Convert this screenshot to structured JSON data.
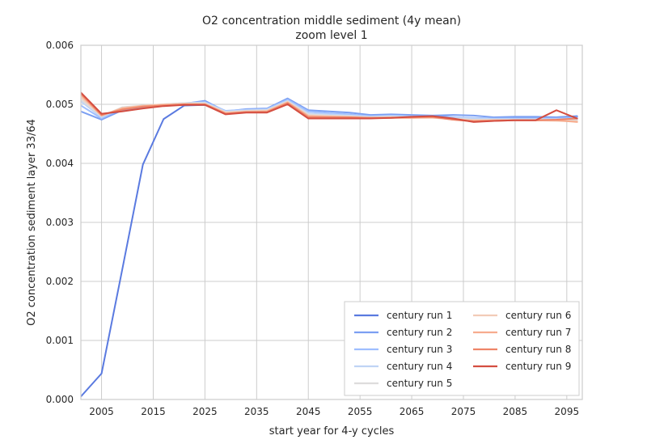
{
  "chart_data": {
    "type": "line",
    "title": "O2 concentration middle sediment (4y mean)",
    "subtitle": "zoom level 1",
    "xlabel": "start year for 4-y cycles",
    "ylabel": "O2 concentration sediment layer 33/64",
    "xlim": [
      2001,
      2098
    ],
    "ylim": [
      0.0,
      0.006
    ],
    "xticks": [
      2005,
      2015,
      2025,
      2035,
      2045,
      2055,
      2065,
      2075,
      2085,
      2095
    ],
    "yticks": [
      "0.000",
      "0.001",
      "0.002",
      "0.003",
      "0.004",
      "0.005",
      "0.006"
    ],
    "ytick_values": [
      0.0,
      0.001,
      0.002,
      0.003,
      0.004,
      0.005,
      0.006
    ],
    "grid": true,
    "legend_position": "lower-right",
    "x": [
      2001,
      2005,
      2009,
      2013,
      2017,
      2021,
      2025,
      2029,
      2033,
      2037,
      2041,
      2045,
      2049,
      2053,
      2057,
      2061,
      2065,
      2069,
      2073,
      2077,
      2081,
      2085,
      2089,
      2093,
      2097
    ],
    "series": [
      {
        "name": "century run 1",
        "color": "#5a7ae0",
        "width": 2,
        "values": [
          5e-05,
          0.00044,
          0.0022,
          0.00398,
          0.00475,
          0.00498,
          0.00499,
          0.00486,
          0.00488,
          0.00488,
          0.00502,
          0.0048,
          0.00477,
          0.00477,
          0.00478,
          0.00478,
          0.00479,
          0.0048,
          0.00478,
          0.00475,
          0.00476,
          0.00477,
          0.00478,
          0.00478,
          0.0048
        ]
      },
      {
        "name": "century run 2",
        "color": "#7b9ff2",
        "width": 2,
        "values": [
          0.00488,
          0.00474,
          0.0049,
          0.00494,
          0.00498,
          0.00501,
          0.00506,
          0.00488,
          0.00492,
          0.00493,
          0.0051,
          0.0049,
          0.00488,
          0.00486,
          0.00482,
          0.00483,
          0.00482,
          0.00481,
          0.00482,
          0.00481,
          0.00478,
          0.00479,
          0.00479,
          0.00478,
          0.00479
        ]
      },
      {
        "name": "century run 3",
        "color": "#9ebeff",
        "width": 2,
        "values": [
          0.00498,
          0.00476,
          0.00493,
          0.00496,
          0.00499,
          0.00502,
          0.00504,
          0.00489,
          0.00491,
          0.00492,
          0.00508,
          0.00488,
          0.00485,
          0.00483,
          0.0048,
          0.00481,
          0.0048,
          0.00479,
          0.00478,
          0.00477,
          0.00476,
          0.00476,
          0.00476,
          0.00476,
          0.00477
        ]
      },
      {
        "name": "century run 4",
        "color": "#c0d4f5",
        "width": 2,
        "values": [
          0.00505,
          0.00478,
          0.00495,
          0.00497,
          0.005,
          0.00502,
          0.00503,
          0.00488,
          0.0049,
          0.00491,
          0.00506,
          0.00485,
          0.00483,
          0.00481,
          0.00479,
          0.0048,
          0.00479,
          0.00478,
          0.00477,
          0.00476,
          0.00475,
          0.00475,
          0.00475,
          0.00475,
          0.00475
        ]
      },
      {
        "name": "century run 5",
        "color": "#dddcdc",
        "width": 2,
        "values": [
          0.00508,
          0.0048,
          0.00495,
          0.00498,
          0.005,
          0.00502,
          0.00502,
          0.00487,
          0.00489,
          0.0049,
          0.00505,
          0.00483,
          0.00481,
          0.0048,
          0.00478,
          0.00479,
          0.00478,
          0.00478,
          0.00476,
          0.00474,
          0.00474,
          0.00474,
          0.00474,
          0.00474,
          0.00473
        ]
      },
      {
        "name": "century run 6",
        "color": "#f2cbb7",
        "width": 2,
        "values": [
          0.00512,
          0.00481,
          0.00494,
          0.00498,
          0.005,
          0.00501,
          0.00501,
          0.00486,
          0.00488,
          0.00489,
          0.00504,
          0.00481,
          0.0048,
          0.00479,
          0.00477,
          0.00478,
          0.00477,
          0.00477,
          0.00475,
          0.00473,
          0.00473,
          0.00473,
          0.00473,
          0.00472,
          0.00471
        ]
      },
      {
        "name": "century run 7",
        "color": "#f7ac8e",
        "width": 2,
        "values": [
          0.00516,
          0.00481,
          0.00493,
          0.00497,
          0.00499,
          0.005,
          0.005,
          0.00485,
          0.00487,
          0.00488,
          0.00503,
          0.0048,
          0.00479,
          0.00478,
          0.00477,
          0.00477,
          0.00477,
          0.00478,
          0.00474,
          0.00472,
          0.00473,
          0.00473,
          0.00473,
          0.00473,
          0.0047
        ]
      },
      {
        "name": "century run 8",
        "color": "#ee8468",
        "width": 2,
        "values": [
          0.00518,
          0.00482,
          0.00491,
          0.00496,
          0.00498,
          0.005,
          0.005,
          0.00484,
          0.00487,
          0.00487,
          0.00502,
          0.00478,
          0.00478,
          0.00478,
          0.00477,
          0.00477,
          0.00478,
          0.00479,
          0.00474,
          0.00471,
          0.00472,
          0.00473,
          0.00473,
          0.00474,
          0.00476
        ]
      },
      {
        "name": "century run 9",
        "color": "#d44e41",
        "width": 2,
        "values": [
          0.0052,
          0.00484,
          0.00488,
          0.00493,
          0.00497,
          0.00499,
          0.00499,
          0.00483,
          0.00486,
          0.00486,
          0.005,
          0.00476,
          0.00476,
          0.00476,
          0.00476,
          0.00477,
          0.00479,
          0.0048,
          0.00476,
          0.0047,
          0.00472,
          0.00473,
          0.00473,
          0.0049,
          0.00476
        ]
      }
    ]
  }
}
